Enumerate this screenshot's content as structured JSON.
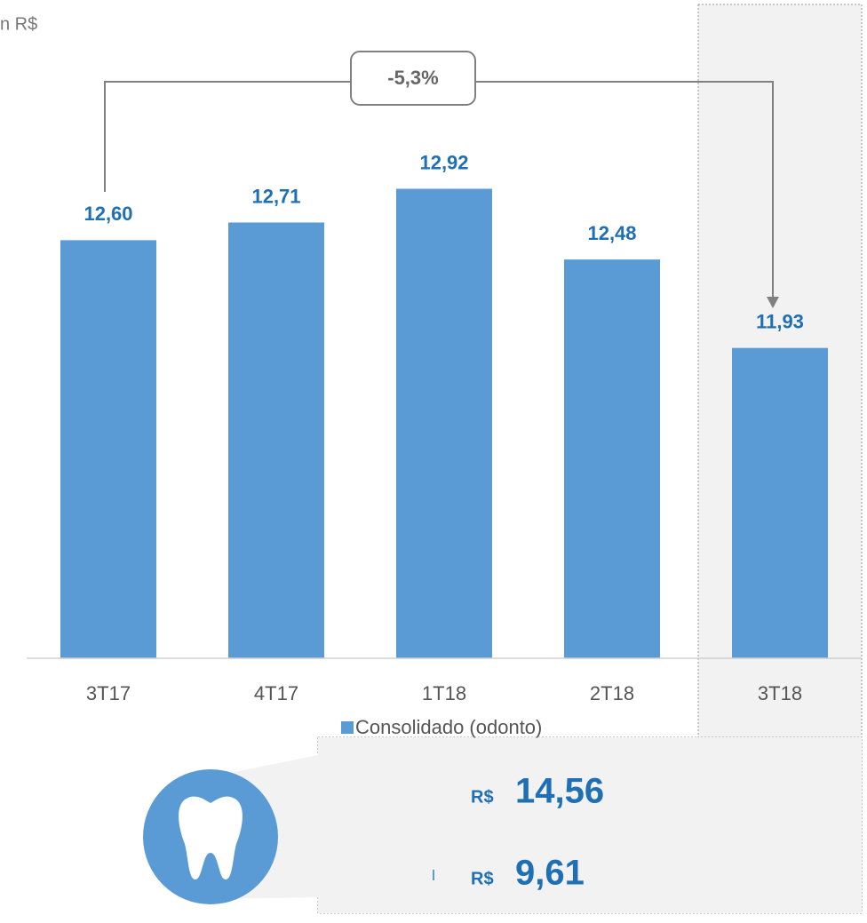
{
  "chart_data": {
    "type": "bar",
    "subtitle": "n R$",
    "categories": [
      "3T17",
      "4T17",
      "1T18",
      "2T18",
      "3T18"
    ],
    "values": [
      12.6,
      12.71,
      12.92,
      12.48,
      11.93
    ],
    "value_labels": [
      "12,60",
      "12,71",
      "12,92",
      "12,48",
      "11,93"
    ],
    "color": "#5b9bd5",
    "ylim": [
      10,
      14
    ],
    "legend": "Consolidado (odonto)",
    "annotation": "-5,3%",
    "callouts": [
      {
        "currency": "R$",
        "value": "14,56"
      },
      {
        "currency": "R$",
        "value": "9,61"
      }
    ]
  }
}
